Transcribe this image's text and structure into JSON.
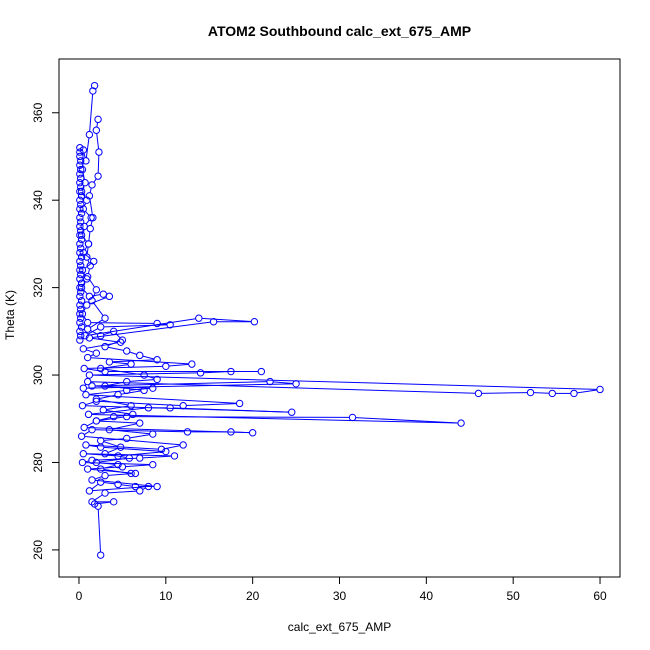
{
  "chart_data": {
    "type": "line",
    "title": "ATOM2 Southbound calc_ext_675_AMP",
    "xlabel": "calc_ext_675_AMP",
    "ylabel": "Theta (K)",
    "xlim": [
      -2.3,
      62.3
    ],
    "ylim": [
      253.8,
      372.3
    ],
    "xticks": [
      0,
      10,
      20,
      30,
      40,
      50,
      60
    ],
    "yticks": [
      260,
      280,
      300,
      320,
      340,
      360
    ],
    "grid": false,
    "legend": "none",
    "line_color": "#0000ff",
    "marker": "open-circle",
    "series": [
      {
        "values": [
          [
            1.8,
            366.2
          ],
          [
            1.6,
            365.0
          ],
          [
            1.2,
            355.0
          ],
          [
            0.8,
            349.0
          ],
          [
            0.5,
            351.5
          ],
          [
            0.4,
            347.0
          ],
          [
            0.7,
            344.0
          ],
          [
            0.3,
            342.0
          ],
          [
            0.9,
            340.0
          ],
          [
            0.5,
            338.0
          ],
          [
            1.4,
            336.0
          ],
          [
            0.6,
            334.0
          ],
          [
            0.3,
            332.0
          ],
          [
            1.1,
            330.0
          ],
          [
            0.5,
            328.0
          ],
          [
            1.7,
            326.0
          ],
          [
            0.4,
            324.0
          ],
          [
            0.9,
            322.0
          ],
          [
            0.3,
            320.0
          ],
          [
            1.2,
            318.0
          ],
          [
            2.8,
            318.5
          ],
          [
            3.5,
            318.0
          ],
          [
            0.9,
            316.0
          ],
          [
            0.4,
            314.0
          ],
          [
            1.0,
            312.0
          ],
          [
            9.0,
            311.8
          ],
          [
            10.5,
            311.5
          ],
          [
            2.5,
            311.0
          ],
          [
            0.7,
            309.0
          ],
          [
            13.8,
            313.0
          ],
          [
            20.2,
            312.2
          ],
          [
            15.5,
            312.2
          ],
          [
            1.2,
            308.5
          ],
          [
            4.8,
            307.5
          ],
          [
            0.5,
            306.0
          ],
          [
            2.0,
            305.0
          ],
          [
            1.0,
            304.0
          ],
          [
            13.0,
            302.5
          ],
          [
            10.0,
            302.0
          ],
          [
            0.6,
            301.5
          ],
          [
            3.0,
            300.8
          ],
          [
            21.0,
            300.8
          ],
          [
            17.5,
            300.8
          ],
          [
            14.0,
            300.5
          ],
          [
            1.2,
            300.0
          ],
          [
            60.0,
            296.7
          ],
          [
            57.0,
            295.8
          ],
          [
            54.5,
            295.8
          ],
          [
            52.0,
            296.0
          ],
          [
            46.0,
            295.8
          ],
          [
            1.0,
            298.5
          ],
          [
            0.5,
            297.0
          ],
          [
            25.0,
            298.0
          ],
          [
            22.0,
            298.5
          ],
          [
            1.5,
            297.5
          ],
          [
            8.5,
            297.0
          ],
          [
            5.5,
            296.5
          ],
          [
            0.8,
            295.5
          ],
          [
            18.5,
            293.5
          ],
          [
            12.0,
            293.0
          ],
          [
            2.0,
            294.0
          ],
          [
            0.4,
            293.0
          ],
          [
            24.5,
            291.5
          ],
          [
            10.5,
            292.5
          ],
          [
            8.0,
            292.5
          ],
          [
            1.1,
            291.0
          ],
          [
            44.0,
            289.0
          ],
          [
            31.5,
            290.3
          ],
          [
            5.5,
            290.5
          ],
          [
            2.0,
            289.5
          ],
          [
            0.6,
            288.0
          ],
          [
            20.0,
            286.8
          ],
          [
            17.5,
            287.0
          ],
          [
            12.5,
            287.0
          ],
          [
            1.5,
            287.5
          ],
          [
            0.3,
            286.0
          ],
          [
            12.0,
            284.0
          ],
          [
            9.5,
            283.0
          ],
          [
            0.8,
            284.0
          ],
          [
            2.5,
            283.5
          ],
          [
            10.0,
            282.5
          ],
          [
            4.5,
            281.5
          ],
          [
            0.5,
            282.0
          ],
          [
            11.0,
            281.5
          ],
          [
            7.0,
            281.0
          ],
          [
            1.5,
            280.5
          ],
          [
            0.4,
            280.0
          ],
          [
            8.5,
            279.5
          ],
          [
            5.0,
            279.0
          ],
          [
            1.0,
            278.5
          ],
          [
            6.5,
            277.5
          ],
          [
            3.0,
            277.0
          ],
          [
            1.5,
            276.0
          ],
          [
            9.0,
            274.5
          ],
          [
            6.5,
            274.5
          ],
          [
            4.5,
            275.0
          ],
          [
            2.5,
            275.5
          ],
          [
            1.2,
            273.5
          ],
          [
            8.0,
            274.5
          ],
          [
            7.0,
            273.5
          ],
          [
            3.0,
            273.0
          ],
          [
            1.5,
            271.0
          ],
          [
            4.0,
            271.0
          ],
          [
            1.8,
            270.5
          ],
          [
            2.2,
            270.0
          ],
          [
            2.5,
            258.8
          ]
        ]
      },
      {
        "values": [
          [
            0.1,
            352.0
          ],
          [
            0.1,
            351.0
          ],
          [
            0.1,
            350.0
          ],
          [
            0.2,
            349.0
          ],
          [
            0.1,
            348.0
          ],
          [
            0.2,
            347.0
          ],
          [
            0.1,
            346.0
          ],
          [
            0.2,
            345.0
          ],
          [
            0.1,
            344.0
          ],
          [
            0.2,
            343.0
          ],
          [
            0.1,
            342.0
          ],
          [
            0.3,
            341.0
          ],
          [
            0.1,
            340.0
          ],
          [
            0.2,
            339.0
          ],
          [
            0.1,
            338.0
          ],
          [
            0.3,
            337.0
          ],
          [
            0.1,
            336.0
          ],
          [
            0.2,
            335.0
          ],
          [
            0.1,
            334.0
          ],
          [
            0.2,
            333.0
          ],
          [
            0.1,
            332.0
          ],
          [
            0.3,
            331.0
          ],
          [
            0.1,
            330.0
          ],
          [
            0.2,
            329.0
          ],
          [
            0.1,
            328.0
          ],
          [
            0.3,
            327.0
          ],
          [
            0.1,
            326.0
          ],
          [
            0.2,
            325.0
          ],
          [
            0.1,
            324.0
          ],
          [
            0.2,
            323.0
          ],
          [
            0.1,
            322.0
          ],
          [
            0.3,
            321.0
          ],
          [
            0.1,
            320.0
          ],
          [
            0.2,
            319.0
          ],
          [
            0.1,
            318.0
          ],
          [
            0.3,
            317.0
          ],
          [
            0.1,
            316.0
          ],
          [
            0.2,
            315.0
          ],
          [
            0.1,
            314.0
          ],
          [
            0.2,
            313.0
          ],
          [
            0.1,
            312.0
          ],
          [
            0.3,
            311.0
          ],
          [
            0.1,
            310.0
          ],
          [
            0.2,
            309.0
          ],
          [
            0.1,
            308.0
          ]
        ]
      },
      {
        "values": [
          [
            2.2,
            358.5
          ],
          [
            2.0,
            356.0
          ],
          [
            2.3,
            351.0
          ],
          [
            2.2,
            345.5
          ],
          [
            1.5,
            343.5
          ],
          [
            1.2,
            341.0
          ],
          [
            1.6,
            336.0
          ],
          [
            1.3,
            333.5
          ],
          [
            1.1,
            330.0
          ],
          [
            0.9,
            327.0
          ],
          [
            1.3,
            325.0
          ],
          [
            1.0,
            322.5
          ],
          [
            2.0,
            319.5
          ],
          [
            1.5,
            317.0
          ],
          [
            3.0,
            313.0
          ],
          [
            1.0,
            310.5
          ],
          [
            2.5,
            309.0
          ],
          [
            4.0,
            310.0
          ],
          [
            5.0,
            308.0
          ],
          [
            3.0,
            306.5
          ],
          [
            5.5,
            305.5
          ],
          [
            7.0,
            304.5
          ],
          [
            9.0,
            303.5
          ],
          [
            3.5,
            303.0
          ],
          [
            6.0,
            302.5
          ],
          [
            2.5,
            301.5
          ],
          [
            7.5,
            300.0
          ],
          [
            9.0,
            299.0
          ],
          [
            5.5,
            298.5
          ],
          [
            3.0,
            297.5
          ],
          [
            7.5,
            296.5
          ],
          [
            4.5,
            295.5
          ],
          [
            2.0,
            294.5
          ],
          [
            6.0,
            293.0
          ],
          [
            2.8,
            292.0
          ],
          [
            6.2,
            291.0
          ],
          [
            4.0,
            290.5
          ],
          [
            2.0,
            289.5
          ],
          [
            7.0,
            289.0
          ],
          [
            3.5,
            287.5
          ],
          [
            8.5,
            286.5
          ],
          [
            5.5,
            285.5
          ],
          [
            2.5,
            285.0
          ],
          [
            4.8,
            283.5
          ],
          [
            3.0,
            282.0
          ],
          [
            5.8,
            281.0
          ],
          [
            2.0,
            280.0
          ],
          [
            4.5,
            279.5
          ],
          [
            2.5,
            278.5
          ],
          [
            6.0,
            277.5
          ]
        ]
      }
    ]
  }
}
